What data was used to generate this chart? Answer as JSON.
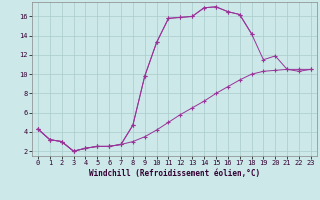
{
  "bg_color": "#cce8e8",
  "line_color": "#993399",
  "marker": "+",
  "xlim": [
    -0.5,
    23.5
  ],
  "ylim": [
    1.5,
    17.5
  ],
  "xticks": [
    0,
    1,
    2,
    3,
    4,
    5,
    6,
    7,
    8,
    9,
    10,
    11,
    12,
    13,
    14,
    15,
    16,
    17,
    18,
    19,
    20,
    21,
    22,
    23
  ],
  "yticks": [
    2,
    4,
    6,
    8,
    10,
    12,
    14,
    16
  ],
  "xlabel": "Windchill (Refroidissement éolien,°C)",
  "grid_color": "#aacccc",
  "tick_fontsize": 5,
  "label_fontsize": 5.5,
  "curve1_x": [
    0,
    1,
    2,
    3,
    4,
    5,
    6,
    7,
    8,
    9,
    10,
    11,
    12,
    13,
    14,
    15,
    16,
    17,
    18,
    19,
    20,
    21,
    22,
    23
  ],
  "curve1_y": [
    4.3,
    3.2,
    3.0,
    2.0,
    2.3,
    2.5,
    2.5,
    2.7,
    3.0,
    3.5,
    4.2,
    5.0,
    5.8,
    6.5,
    7.2,
    8.0,
    8.7,
    9.4,
    10.0,
    10.3,
    10.4,
    10.5,
    10.5,
    10.5
  ],
  "curve2_x": [
    0,
    1,
    2,
    3,
    4,
    5,
    6,
    7,
    8,
    9,
    10,
    11,
    12,
    13,
    14,
    15,
    16,
    17,
    18,
    19,
    20,
    21,
    22,
    23
  ],
  "curve2_y": [
    4.3,
    3.2,
    3.0,
    2.0,
    2.3,
    2.5,
    2.5,
    2.7,
    4.7,
    9.8,
    13.3,
    15.8,
    15.9,
    16.0,
    16.9,
    17.0,
    16.5,
    16.2,
    14.2,
    11.5,
    11.9,
    10.5,
    10.3,
    10.5
  ],
  "curve3_x": [
    0,
    1,
    2,
    3,
    4,
    5,
    6,
    7,
    8,
    9,
    10,
    11,
    12,
    13,
    14,
    15,
    16,
    17,
    18
  ],
  "curve3_y": [
    4.3,
    3.2,
    3.0,
    2.0,
    2.3,
    2.5,
    2.5,
    2.7,
    4.7,
    9.8,
    13.3,
    15.8,
    15.9,
    16.0,
    16.9,
    17.0,
    16.5,
    16.2,
    14.2
  ]
}
